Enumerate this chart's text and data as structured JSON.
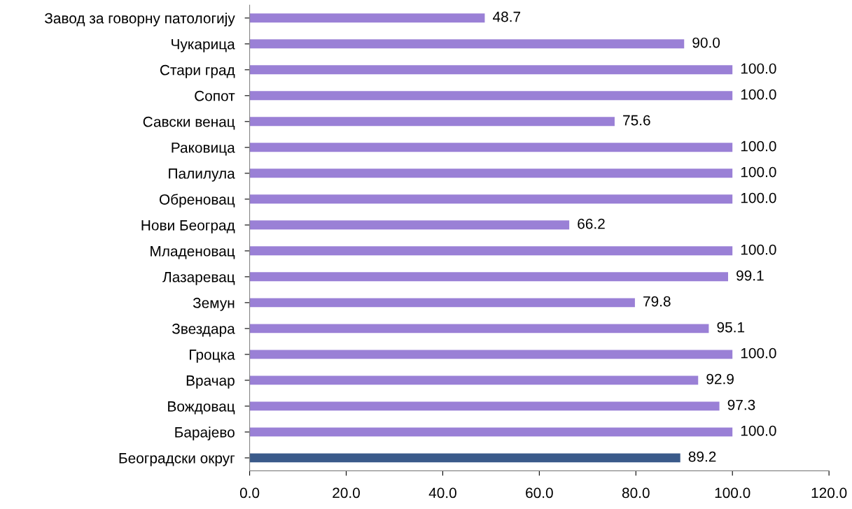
{
  "chart_data": {
    "type": "bar",
    "orientation": "horizontal",
    "categories": [
      "Завод за говорну патологију",
      "Чукарица",
      "Стари град",
      "Сопот",
      "Савски венац",
      "Раковица",
      "Палилула",
      "Обреновац",
      "Нови Београд",
      "Младеновац",
      "Лазаревац",
      "Земун",
      "Звездара",
      "Гроцка",
      "Врачар",
      "Вождовац",
      "Барајево",
      "Београдски округ"
    ],
    "values": [
      48.7,
      90.0,
      100.0,
      100.0,
      75.6,
      100.0,
      100.0,
      100.0,
      66.2,
      100.0,
      99.1,
      79.8,
      95.1,
      100.0,
      92.9,
      97.3,
      100.0,
      89.2
    ],
    "value_labels": [
      "48.7",
      "90.0",
      "100.0",
      "100.0",
      "75.6",
      "100.0",
      "100.0",
      "100.0",
      "66.2",
      "100.0",
      "99.1",
      "79.8",
      "95.1",
      "100.0",
      "92.9",
      "97.3",
      "100.0",
      "89.2"
    ],
    "colors": [
      "#9a80d6",
      "#9a80d6",
      "#9a80d6",
      "#9a80d6",
      "#9a80d6",
      "#9a80d6",
      "#9a80d6",
      "#9a80d6",
      "#9a80d6",
      "#9a80d6",
      "#9a80d6",
      "#9a80d6",
      "#9a80d6",
      "#9a80d6",
      "#9a80d6",
      "#9a80d6",
      "#9a80d6",
      "#3a5a8a"
    ],
    "xlim": [
      0,
      120
    ],
    "xticks": [
      {
        "value": 0,
        "label": "0.0"
      },
      {
        "value": 20,
        "label": "20.0"
      },
      {
        "value": 40,
        "label": "40.0"
      },
      {
        "value": 60,
        "label": "60.0"
      },
      {
        "value": 80,
        "label": "80.0"
      },
      {
        "value": 100,
        "label": "100.0"
      },
      {
        "value": 120,
        "label": "120.0"
      }
    ],
    "grid": false,
    "legend": false
  }
}
